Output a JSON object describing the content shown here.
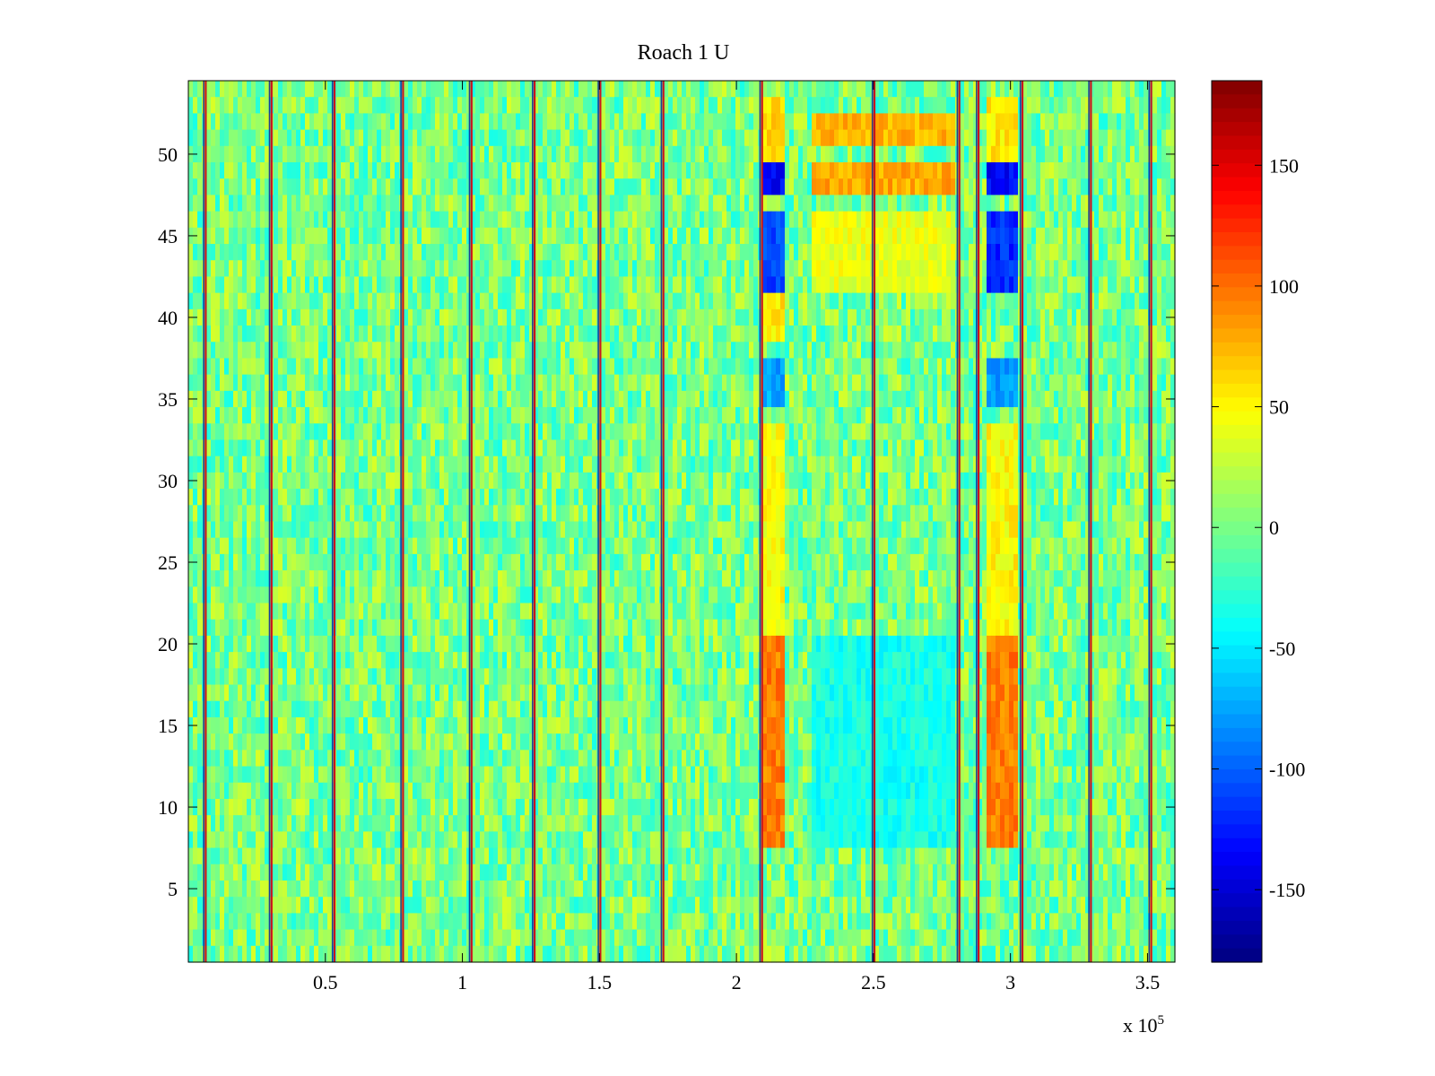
{
  "chart_data": {
    "type": "heatmap",
    "title": "Roach 1 U",
    "xlabel": "",
    "ylabel": "",
    "x_range": [
      0,
      360000
    ],
    "y_range": [
      0.5,
      54.5
    ],
    "x_ticks": [
      50000,
      100000,
      150000,
      200000,
      250000,
      300000,
      350000
    ],
    "x_tick_labels": [
      "0.5",
      "1",
      "1.5",
      "2",
      "2.5",
      "3",
      "3.5"
    ],
    "x_exponent_label": "x 10",
    "x_exponent_power": "5",
    "y_ticks": [
      5,
      10,
      15,
      20,
      25,
      30,
      35,
      40,
      45,
      50
    ],
    "y_tick_labels": [
      "5",
      "10",
      "15",
      "20",
      "25",
      "30",
      "35",
      "40",
      "45",
      "50"
    ],
    "colormap": "jet",
    "clim": [
      -180,
      185
    ],
    "colorbar_ticks": [
      150,
      100,
      50,
      0,
      -50,
      -100,
      -150
    ],
    "colorbar_tick_labels": [
      "150",
      "100",
      "50",
      "0",
      "-50",
      "-100",
      "-150"
    ],
    "rows": 54,
    "background_mean": 0,
    "vertical_stripes_x": [
      6000,
      30000,
      53000,
      78000,
      103000,
      126000,
      150000,
      173000,
      209000,
      250000,
      281000,
      288000,
      304000,
      329000,
      351000
    ],
    "block_regions": [
      {
        "x_range": [
          210000,
          218000
        ],
        "y_range": [
          7.5,
          20.5
        ],
        "value": 95
      },
      {
        "x_range": [
          210000,
          218000
        ],
        "y_range": [
          21,
          33
        ],
        "value": 45
      },
      {
        "x_range": [
          210000,
          218000
        ],
        "y_range": [
          34.5,
          37.5
        ],
        "value": -75
      },
      {
        "x_range": [
          210000,
          218000
        ],
        "y_range": [
          38.5,
          42
        ],
        "value": 55
      },
      {
        "x_range": [
          210000,
          218000
        ],
        "y_range": [
          42,
          46
        ],
        "value": -110
      },
      {
        "x_range": [
          210000,
          218000
        ],
        "y_range": [
          48,
          49.5
        ],
        "value": -135
      },
      {
        "x_range": [
          210000,
          218000
        ],
        "y_range": [
          50,
          53.5
        ],
        "value": 60
      },
      {
        "x_range": [
          292000,
          302000
        ],
        "y_range": [
          7.5,
          20.5
        ],
        "value": 95
      },
      {
        "x_range": [
          292000,
          302000
        ],
        "y_range": [
          21,
          33
        ],
        "value": 50
      },
      {
        "x_range": [
          292000,
          302000
        ],
        "y_range": [
          34.5,
          37.5
        ],
        "value": -80
      },
      {
        "x_range": [
          292000,
          302000
        ],
        "y_range": [
          42,
          46
        ],
        "value": -120
      },
      {
        "x_range": [
          292000,
          302000
        ],
        "y_range": [
          48,
          49.5
        ],
        "value": -135
      },
      {
        "x_range": [
          292000,
          302000
        ],
        "y_range": [
          50,
          53.5
        ],
        "value": 55
      },
      {
        "x_range": [
          228000,
          280000
        ],
        "y_range": [
          48,
          49.5
        ],
        "value": 80
      },
      {
        "x_range": [
          228000,
          280000
        ],
        "y_range": [
          50.5,
          52
        ],
        "value": 75
      },
      {
        "x_range": [
          228000,
          280000
        ],
        "y_range": [
          7.5,
          20.5
        ],
        "value": -35
      },
      {
        "x_range": [
          228000,
          280000
        ],
        "y_range": [
          42,
          46
        ],
        "value": 40
      }
    ]
  }
}
